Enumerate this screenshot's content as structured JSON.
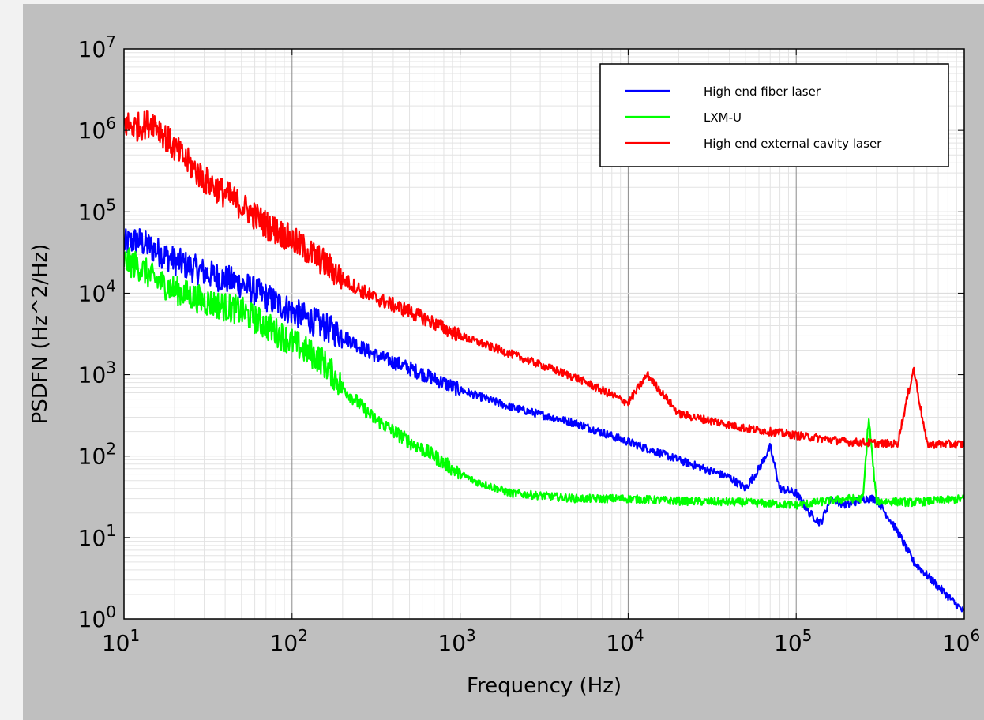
{
  "chart_data": {
    "type": "line",
    "xlabel": "Frequency (Hz)",
    "ylabel": "PSDFN (Hz^2/Hz)",
    "xscale": "log",
    "yscale": "log",
    "xlim": [
      10,
      1000000
    ],
    "ylim": [
      1,
      10000000
    ],
    "grid": true,
    "legend_placement": "top-right",
    "x_ticks": [
      {
        "base": "10",
        "exp": "1"
      },
      {
        "base": "10",
        "exp": "2"
      },
      {
        "base": "10",
        "exp": "3"
      },
      {
        "base": "10",
        "exp": "4"
      },
      {
        "base": "10",
        "exp": "5"
      },
      {
        "base": "10",
        "exp": "6"
      }
    ],
    "y_ticks": [
      {
        "base": "10",
        "exp": "0"
      },
      {
        "base": "10",
        "exp": "1"
      },
      {
        "base": "10",
        "exp": "2"
      },
      {
        "base": "10",
        "exp": "3"
      },
      {
        "base": "10",
        "exp": "4"
      },
      {
        "base": "10",
        "exp": "5"
      },
      {
        "base": "10",
        "exp": "6"
      },
      {
        "base": "10",
        "exp": "7"
      }
    ],
    "series": [
      {
        "name": "High end fiber laser",
        "color": "#0000ff",
        "x": [
          10,
          12,
          15,
          20,
          30,
          50,
          70,
          100,
          150,
          200,
          300,
          500,
          1000,
          2000,
          5000,
          10000,
          20000,
          40000,
          50000,
          60000,
          70000,
          80000,
          100000,
          120000,
          140000,
          160000,
          200000,
          250000,
          300000,
          400000,
          500000,
          700000,
          1000000
        ],
        "y": [
          40000,
          45000,
          35000,
          25000,
          18000,
          13000,
          9000,
          6000,
          4000,
          3000,
          1800,
          1200,
          650,
          400,
          250,
          150,
          90,
          55,
          40,
          70,
          130,
          40,
          35,
          20,
          15,
          30,
          25,
          30,
          30,
          12,
          5,
          2.5,
          1.2
        ]
      },
      {
        "name": "LXM-U",
        "color": "#00ff00",
        "x": [
          10,
          12,
          15,
          20,
          30,
          50,
          70,
          100,
          150,
          200,
          300,
          500,
          700,
          1000,
          1200,
          2000,
          5000,
          10000,
          20000,
          50000,
          100000,
          150000,
          200000,
          250000,
          270000,
          300000,
          500000,
          1000000
        ],
        "y": [
          25000,
          22000,
          15000,
          11000,
          8000,
          6000,
          4000,
          2500,
          1500,
          700,
          300,
          150,
          100,
          60,
          50,
          35,
          30,
          30,
          28,
          27,
          25,
          28,
          30,
          30,
          300,
          28,
          27,
          30
        ]
      },
      {
        "name": "High end external cavity laser",
        "color": "#ff0000",
        "x": [
          10,
          12,
          15,
          20,
          30,
          50,
          70,
          100,
          150,
          200,
          300,
          500,
          1000,
          2000,
          5000,
          10000,
          13000,
          20000,
          50000,
          100000,
          200000,
          400000,
          500000,
          600000,
          1000000
        ],
        "y": [
          1200000,
          1100000,
          1300000,
          600000,
          250000,
          120000,
          70000,
          45000,
          25000,
          15000,
          9000,
          6000,
          3000,
          1800,
          900,
          450,
          1000,
          330,
          220,
          180,
          150,
          140,
          1200,
          140,
          140
        ]
      }
    ]
  }
}
